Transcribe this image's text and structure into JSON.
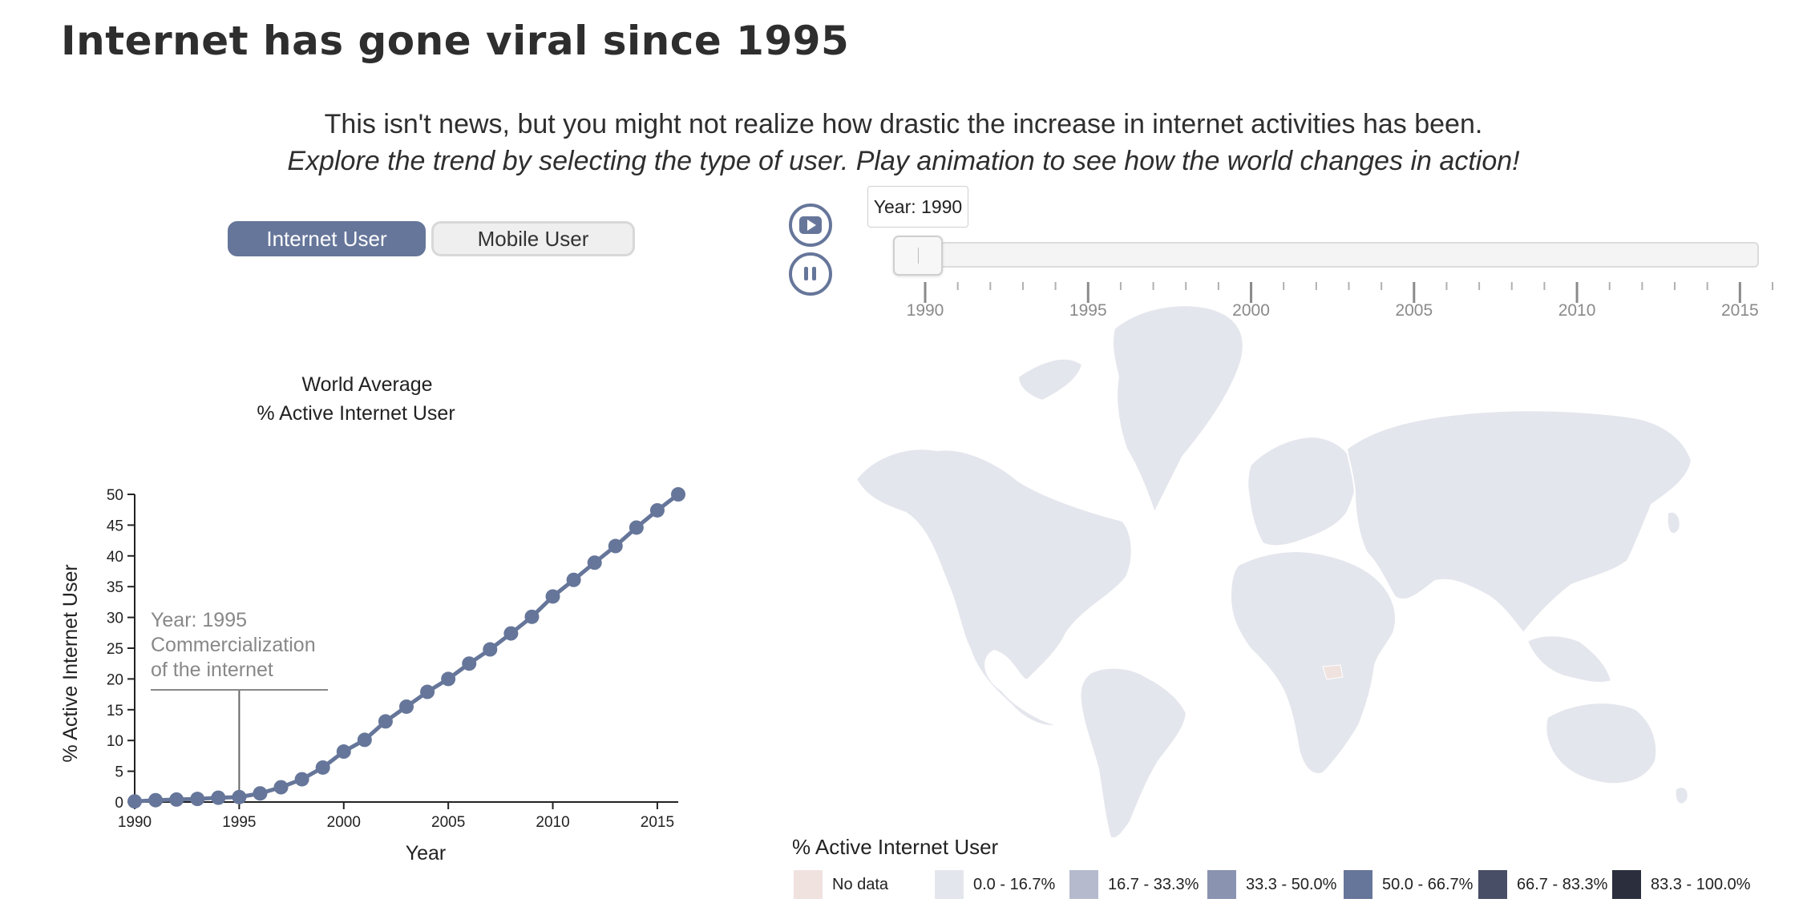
{
  "page": {
    "title": "Internet has gone viral since 1995",
    "intro_line1": "This isn't news, but you might not realize how drastic the increase in internet activities has been.",
    "intro_line2": "Explore the trend by selecting the type of user. Play animation to see how the world changes in action!"
  },
  "toggle": {
    "internet_label": "Internet User",
    "mobile_label": "Mobile User",
    "selected": "Internet User"
  },
  "controls": {
    "play_icon": "play-icon",
    "pause_icon": "pause-icon"
  },
  "slider": {
    "year_label": "Year: 1990",
    "value": 1990,
    "min": 1990,
    "max": 2016,
    "tick_labels": [
      "1990",
      "1995",
      "2000",
      "2005",
      "2010",
      "2015"
    ]
  },
  "colors": {
    "accent": "#66769a",
    "no_data": "#f0e2df",
    "land": "#e4e6ed"
  },
  "chart_data": {
    "type": "line",
    "title_line1": "World Average",
    "title_line2": "% Active Internet User",
    "xlabel": "Year",
    "ylabel": "% Active Internet User",
    "xlim": [
      1990,
      2016
    ],
    "ylim": [
      0,
      50
    ],
    "xticks": [
      1990,
      1995,
      2000,
      2005,
      2010,
      2015
    ],
    "yticks": [
      0,
      5,
      10,
      15,
      20,
      25,
      30,
      35,
      40,
      45,
      50
    ],
    "x": [
      1990,
      1991,
      1992,
      1993,
      1994,
      1995,
      1996,
      1997,
      1998,
      1999,
      2000,
      2001,
      2002,
      2003,
      2004,
      2005,
      2006,
      2007,
      2008,
      2009,
      2010,
      2011,
      2012,
      2013,
      2014,
      2015,
      2016
    ],
    "y": [
      0.1,
      0.3,
      0.4,
      0.5,
      0.7,
      0.8,
      1.4,
      2.4,
      3.7,
      5.6,
      8.2,
      10.1,
      13.1,
      15.5,
      17.9,
      20.0,
      22.5,
      24.8,
      27.4,
      30.1,
      33.4,
      36.1,
      38.9,
      41.6,
      44.6,
      47.4,
      50.0
    ],
    "annotation": {
      "year": 1995,
      "line1": "Year: 1995",
      "line2": "Commercialization",
      "line3": "of the internet"
    },
    "grid": false
  },
  "map": {
    "legend_title": "% Active Internet User",
    "legend": [
      {
        "label": "No data",
        "color": "#f0e2df"
      },
      {
        "label": "0.0 - 16.7%",
        "color": "#e4e6ed"
      },
      {
        "label": "16.7 - 33.3%",
        "color": "#b5bacd"
      },
      {
        "label": "33.3 - 50.0%",
        "color": "#8a93b0"
      },
      {
        "label": "50.0 - 66.7%",
        "color": "#66769a"
      },
      {
        "label": "66.7 - 83.3%",
        "color": "#484e66"
      },
      {
        "label": "83.3 - 100.0%",
        "color": "#2b2f3d"
      }
    ]
  }
}
